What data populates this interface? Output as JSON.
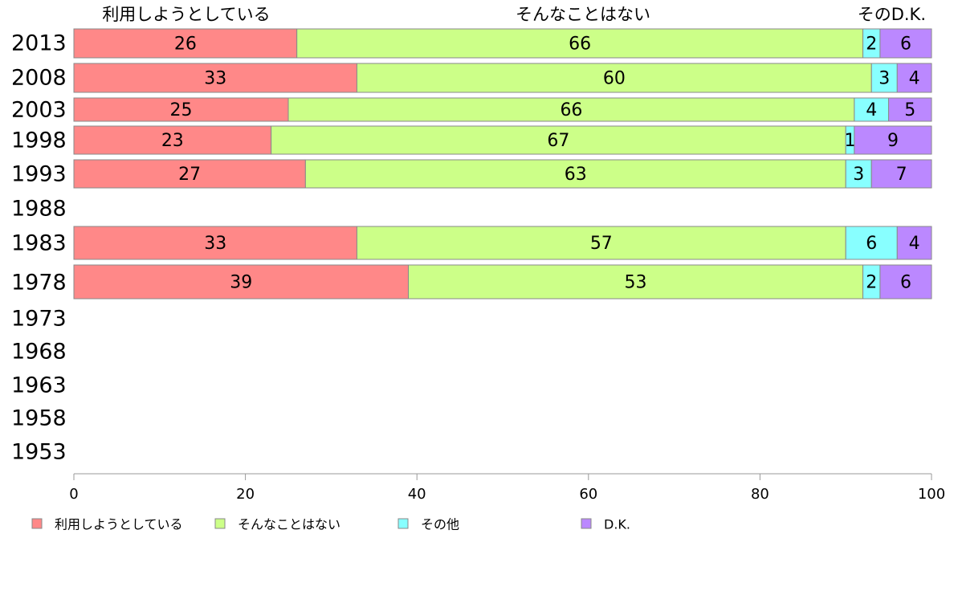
{
  "chart_data": {
    "type": "bar",
    "orientation": "horizontal",
    "stacked": true,
    "categories": [
      "2013",
      "2008",
      "2003",
      "1998",
      "1993",
      "1988",
      "1983",
      "1978",
      "1973",
      "1968",
      "1963",
      "1958",
      "1953"
    ],
    "series": [
      {
        "name": "利用しようとしている",
        "color": "#ff8888",
        "values": [
          26,
          33,
          25,
          23,
          27,
          null,
          33,
          39,
          null,
          null,
          null,
          null,
          null
        ]
      },
      {
        "name": "そんなことはない",
        "color": "#ccff88",
        "values": [
          66,
          60,
          66,
          67,
          63,
          null,
          57,
          53,
          null,
          null,
          null,
          null,
          null
        ]
      },
      {
        "name": "その他",
        "color": "#88ffff",
        "values": [
          2,
          3,
          4,
          1,
          3,
          null,
          6,
          2,
          null,
          null,
          null,
          null,
          null
        ]
      },
      {
        "name": "D.K.",
        "color": "#bb88ff",
        "values": [
          6,
          4,
          5,
          9,
          7,
          null,
          4,
          6,
          null,
          null,
          null,
          null,
          null
        ]
      }
    ],
    "top_labels": [
      "利用しようとしている",
      "そんなことはない",
      "そのD.K."
    ],
    "xlim": [
      0,
      100
    ],
    "xticks": [
      0,
      20,
      40,
      60,
      80,
      100
    ],
    "grid": false,
    "legend_position": "bottom"
  }
}
